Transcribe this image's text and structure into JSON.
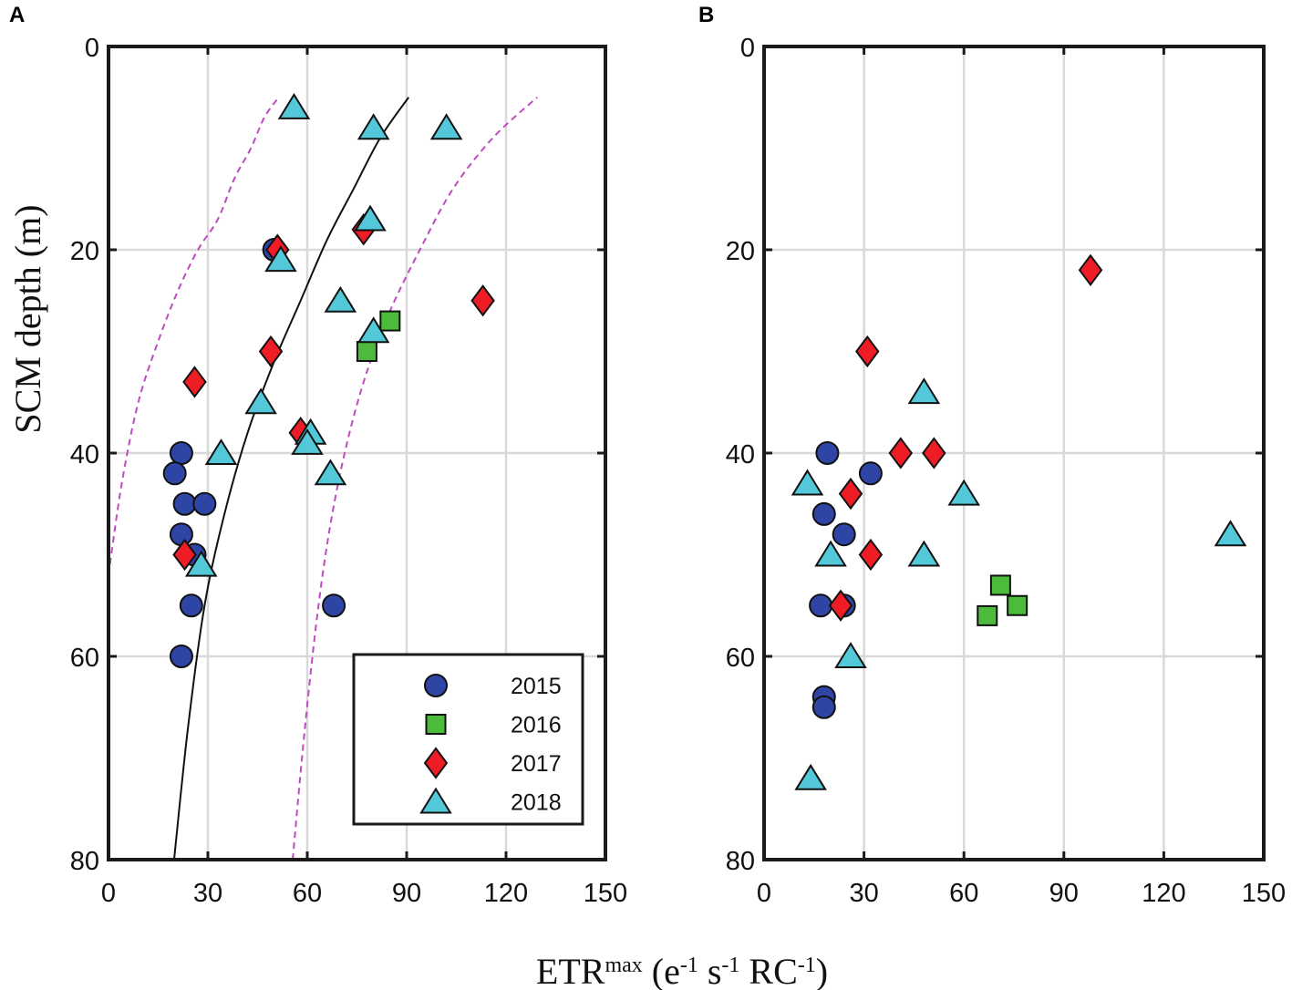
{
  "figure": {
    "xlabel_main": "ETR",
    "xlabel_sup": "max",
    "xlabel_units": " (e",
    "xlabel_e_exp": "-1",
    "xlabel_s": " s",
    "xlabel_s_exp": "-1",
    "xlabel_rc": " RC",
    "xlabel_rc_exp": "-1",
    "xlabel_close": ")",
    "ylabel": "SCM depth (m)"
  },
  "colors": {
    "2015": "#2f45a6",
    "2016": "#4cbb3c",
    "2017": "#ee1c24",
    "2018": "#52c8d8",
    "fit": "#111111",
    "bounds": "#c04ac0"
  },
  "chart_data": [
    {
      "panel": "A",
      "type": "scatter",
      "xlim": [
        0,
        150
      ],
      "ylim": [
        80,
        0
      ],
      "xticks": [
        "0",
        "30",
        "60",
        "90",
        "120",
        "150"
      ],
      "yticks": [
        "0",
        "20",
        "40",
        "60",
        "80"
      ],
      "xtick_values": [
        0,
        30,
        60,
        90,
        120,
        150
      ],
      "ytick_values": [
        0,
        20,
        40,
        60,
        80
      ],
      "grid": true,
      "legend": {
        "placement": "bottom-right",
        "entries": [
          "2015",
          "2016",
          "2017",
          "2018"
        ]
      },
      "series": [
        {
          "name": "2015",
          "marker": "circle",
          "x": [
            50,
            22,
            20,
            23,
            29,
            22,
            26,
            25,
            22,
            68
          ],
          "y": [
            20,
            40,
            42,
            45,
            45,
            48,
            50,
            55,
            60,
            55
          ]
        },
        {
          "name": "2016",
          "marker": "square",
          "x": [
            85,
            78
          ],
          "y": [
            27,
            30
          ]
        },
        {
          "name": "2017",
          "marker": "diamond",
          "x": [
            51,
            77,
            113,
            49,
            26,
            58,
            23
          ],
          "y": [
            20,
            18,
            25,
            30,
            33,
            38,
            50
          ]
        },
        {
          "name": "2018",
          "marker": "triangle",
          "x": [
            56,
            80,
            102,
            79,
            52,
            70,
            80,
            46,
            61,
            60,
            34,
            67,
            28
          ],
          "y": [
            6,
            8,
            8,
            17,
            21,
            25,
            28,
            35,
            38,
            39,
            40,
            42,
            51
          ]
        }
      ],
      "curves": [
        {
          "name": "fit",
          "style": "solid",
          "x": [
            19.8,
            24,
            29,
            35,
            42,
            50,
            58,
            66,
            74,
            82,
            90.6
          ],
          "y": [
            80,
            67,
            55,
            46,
            38,
            31,
            25,
            19,
            14,
            9,
            5
          ]
        },
        {
          "name": "lower-bound",
          "style": "dashed",
          "x": [
            0,
            4,
            9,
            15,
            21,
            27,
            33,
            38,
            43,
            47,
            51.4
          ],
          "y": [
            52,
            43,
            35,
            29,
            24,
            20,
            17,
            13,
            10,
            7,
            5
          ]
        },
        {
          "name": "upper-bound",
          "style": "dashed",
          "x": [
            55.6,
            59,
            63,
            67,
            72,
            78,
            85,
            94,
            104,
            116,
            129.4
          ],
          "y": [
            80,
            68,
            56,
            47,
            39,
            32,
            26,
            20,
            14,
            9,
            5
          ]
        }
      ]
    },
    {
      "panel": "B",
      "type": "scatter",
      "xlim": [
        0,
        150
      ],
      "ylim": [
        80,
        0
      ],
      "xticks": [
        "0",
        "30",
        "60",
        "90",
        "120",
        "150"
      ],
      "yticks": [
        "0",
        "20",
        "40",
        "60",
        "80"
      ],
      "xtick_values": [
        0,
        30,
        60,
        90,
        120,
        150
      ],
      "ytick_values": [
        0,
        20,
        40,
        60,
        80
      ],
      "grid": true,
      "series": [
        {
          "name": "2015",
          "marker": "circle",
          "x": [
            19,
            32,
            18,
            24,
            17,
            24,
            18,
            18
          ],
          "y": [
            40,
            42,
            46,
            48,
            55,
            55,
            64,
            65
          ]
        },
        {
          "name": "2016",
          "marker": "square",
          "x": [
            71,
            67,
            76
          ],
          "y": [
            53,
            56,
            55
          ]
        },
        {
          "name": "2017",
          "marker": "diamond",
          "x": [
            98,
            31,
            41,
            51,
            26,
            32,
            23
          ],
          "y": [
            22,
            30,
            40,
            40,
            44,
            50,
            55
          ]
        },
        {
          "name": "2018",
          "marker": "triangle",
          "x": [
            48,
            13,
            60,
            140,
            20,
            48,
            26,
            14
          ],
          "y": [
            34,
            43,
            44,
            48,
            50,
            50,
            60,
            72
          ]
        }
      ]
    }
  ]
}
